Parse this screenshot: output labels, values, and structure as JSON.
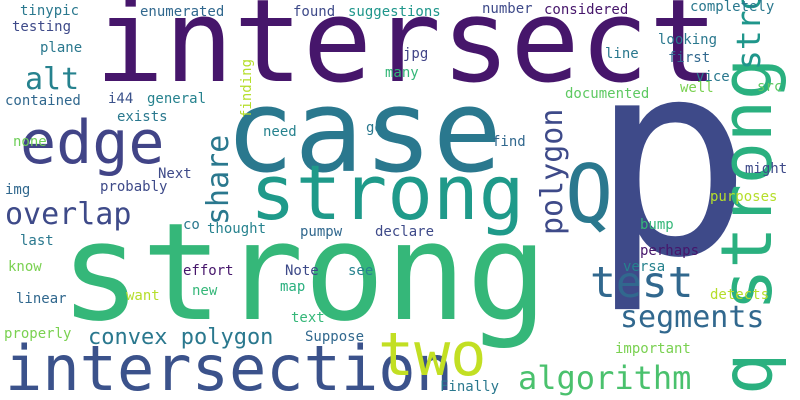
{
  "background": "#ffffff",
  "words": [
    {
      "text": "p",
      "color": "#3e4a89",
      "orientation": "horizontal"
    },
    {
      "text": "strong",
      "color": "#35b779",
      "orientation": "horizontal"
    },
    {
      "text": "intersect",
      "color": "#46166b",
      "orientation": "horizontal"
    },
    {
      "text": "case",
      "color": "#2a788e",
      "orientation": "horizontal"
    },
    {
      "text": "strong",
      "color": "#1f9a8a",
      "orientation": "horizontal"
    },
    {
      "text": "Q",
      "color": "#2a788e",
      "orientation": "horizontal"
    },
    {
      "text": "q strong",
      "color": "#2ab07f",
      "orientation": "vertical"
    },
    {
      "text": "strong",
      "color": "#1f968b",
      "orientation": "vertical"
    },
    {
      "text": "intersection",
      "color": "#3b528b",
      "orientation": "horizontal"
    },
    {
      "text": "two",
      "color": "#c2df23",
      "orientation": "horizontal"
    },
    {
      "text": "edge",
      "color": "#414487",
      "orientation": "horizontal"
    },
    {
      "text": "test",
      "color": "#31688e",
      "orientation": "horizontal"
    },
    {
      "text": "algorithm",
      "color": "#4ac16d",
      "orientation": "horizontal"
    },
    {
      "text": "polygon",
      "color": "#3e4a89",
      "orientation": "vertical"
    },
    {
      "text": "segments",
      "color": "#31688e",
      "orientation": "horizontal"
    },
    {
      "text": "overlap",
      "color": "#3e4a89",
      "orientation": "horizontal"
    },
    {
      "text": "share",
      "color": "#2a788e",
      "orientation": "vertical"
    },
    {
      "text": "alt",
      "color": "#26828e",
      "orientation": "horizontal"
    },
    {
      "text": "convex polygon",
      "color": "#2a788e",
      "orientation": "horizontal"
    },
    {
      "text": "tinypic",
      "color": "#2a788e",
      "orientation": "horizontal"
    },
    {
      "text": "testing",
      "color": "#3e4a89",
      "orientation": "horizontal"
    },
    {
      "text": "plane",
      "color": "#2a788e",
      "orientation": "horizontal"
    },
    {
      "text": "enumerated",
      "color": "#31688e",
      "orientation": "horizontal"
    },
    {
      "text": "found",
      "color": "#3e4a89",
      "orientation": "horizontal"
    },
    {
      "text": "suggestions",
      "color": "#1f968b",
      "orientation": "horizontal"
    },
    {
      "text": "number",
      "color": "#3e4a89",
      "orientation": "horizontal"
    },
    {
      "text": "considered",
      "color": "#46166b",
      "orientation": "horizontal"
    },
    {
      "text": "completely",
      "color": "#2a788e",
      "orientation": "horizontal"
    },
    {
      "text": "looking",
      "color": "#2a788e",
      "orientation": "horizontal"
    },
    {
      "text": "first",
      "color": "#31688e",
      "orientation": "horizontal"
    },
    {
      "text": "vice",
      "color": "#2a788e",
      "orientation": "horizontal"
    },
    {
      "text": "well",
      "color": "#7ad151",
      "orientation": "horizontal"
    },
    {
      "text": "src",
      "color": "#5ec962",
      "orientation": "horizontal"
    },
    {
      "text": "line",
      "color": "#2a788e",
      "orientation": "horizontal"
    },
    {
      "text": "jpg",
      "color": "#414487",
      "orientation": "horizontal"
    },
    {
      "text": "many",
      "color": "#35b779",
      "orientation": "horizontal"
    },
    {
      "text": "documented",
      "color": "#5ec962",
      "orientation": "horizontal"
    },
    {
      "text": "finding",
      "color": "#b5de2b",
      "orientation": "vertical"
    },
    {
      "text": "contained",
      "color": "#31688e",
      "orientation": "horizontal"
    },
    {
      "text": "i44",
      "color": "#3b528b",
      "orientation": "horizontal"
    },
    {
      "text": "general",
      "color": "#26828e",
      "orientation": "horizontal"
    },
    {
      "text": "exists",
      "color": "#2a788e",
      "orientation": "horizontal"
    },
    {
      "text": "need",
      "color": "#26828e",
      "orientation": "horizontal"
    },
    {
      "text": "go",
      "color": "#2a788e",
      "orientation": "horizontal"
    },
    {
      "text": "find",
      "color": "#31688e",
      "orientation": "horizontal"
    },
    {
      "text": "might",
      "color": "#3e4a89",
      "orientation": "horizontal"
    },
    {
      "text": "none",
      "color": "#6ece58",
      "orientation": "horizontal"
    },
    {
      "text": "Next",
      "color": "#3e4a89",
      "orientation": "horizontal"
    },
    {
      "text": "img",
      "color": "#31688e",
      "orientation": "horizontal"
    },
    {
      "text": "probably",
      "color": "#3e4a89",
      "orientation": "horizontal"
    },
    {
      "text": "purposes",
      "color": "#b5de2b",
      "orientation": "horizontal"
    },
    {
      "text": "co",
      "color": "#2a788e",
      "orientation": "horizontal"
    },
    {
      "text": "thought",
      "color": "#26828e",
      "orientation": "horizontal"
    },
    {
      "text": "pumpw",
      "color": "#31688e",
      "orientation": "horizontal"
    },
    {
      "text": "declare",
      "color": "#3e4a89",
      "orientation": "horizontal"
    },
    {
      "text": "bump",
      "color": "#35b779",
      "orientation": "horizontal"
    },
    {
      "text": "last",
      "color": "#2a788e",
      "orientation": "horizontal"
    },
    {
      "text": "perhaps",
      "color": "#46166b",
      "orientation": "horizontal"
    },
    {
      "text": "know",
      "color": "#7ad151",
      "orientation": "horizontal"
    },
    {
      "text": "effort",
      "color": "#46166b",
      "orientation": "horizontal"
    },
    {
      "text": "Note",
      "color": "#3e4a89",
      "orientation": "horizontal"
    },
    {
      "text": "see",
      "color": "#26828e",
      "orientation": "horizontal"
    },
    {
      "text": "versa",
      "color": "#26828e",
      "orientation": "horizontal"
    },
    {
      "text": "new",
      "color": "#35b779",
      "orientation": "horizontal"
    },
    {
      "text": "map",
      "color": "#2ab07f",
      "orientation": "horizontal"
    },
    {
      "text": "want",
      "color": "#b5de2b",
      "orientation": "horizontal"
    },
    {
      "text": "linear",
      "color": "#31688e",
      "orientation": "horizontal"
    },
    {
      "text": "detects",
      "color": "#b5de2b",
      "orientation": "horizontal"
    },
    {
      "text": "text",
      "color": "#35b779",
      "orientation": "horizontal"
    },
    {
      "text": "properly",
      "color": "#7ad151",
      "orientation": "horizontal"
    },
    {
      "text": "Suppose",
      "color": "#31688e",
      "orientation": "horizontal"
    },
    {
      "text": "important",
      "color": "#7ad151",
      "orientation": "horizontal"
    },
    {
      "text": "Finally",
      "color": "#2a788e",
      "orientation": "horizontal"
    }
  ]
}
